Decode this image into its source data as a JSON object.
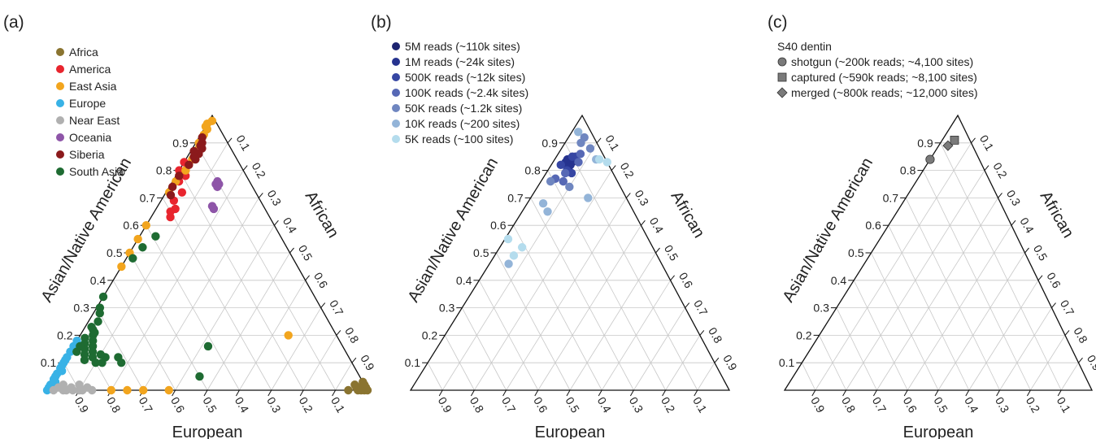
{
  "panel_labels": [
    "(a)",
    "(b)",
    "(c)"
  ],
  "colors": {
    "Africa": "#8a7430",
    "America": "#e8252e",
    "East Asia": "#f2a51e",
    "Europe": "#38b2e6",
    "Near East": "#b0b0b0",
    "Oceania": "#8e55a8",
    "Siberia": "#8b1a1c",
    "South Asia": "#1e6b32",
    "5M": "#1d2470",
    "1M": "#26338f",
    "500K": "#3646a3",
    "100K": "#5668b5",
    "50K": "#6f86c0",
    "10K": "#93b4d8",
    "5K": "#b4dced",
    "sample": "#7a7a7a"
  },
  "chart_data": [
    {
      "type": "scatter",
      "subtype": "ternary",
      "panel": "(a)",
      "axes": {
        "left": "Asian/Native American",
        "right": "African",
        "bottom": "European"
      },
      "ticks": [
        "0.1",
        "0.2",
        "0.3",
        "0.4",
        "0.5",
        "0.6",
        "0.7",
        "0.8",
        "0.9"
      ],
      "legend_position": "top-left",
      "legend": [
        "Africa",
        "America",
        "East Asia",
        "Europe",
        "Near East",
        "Oceania",
        "Siberia",
        "South Asia"
      ],
      "series": [
        {
          "name": "Africa",
          "points": [
            [
              0.0,
              0.99
            ],
            [
              0.01,
              0.98
            ],
            [
              0.0,
              0.97
            ],
            [
              0.02,
              0.95
            ],
            [
              0.01,
              0.96
            ],
            [
              0.0,
              0.94
            ],
            [
              0.03,
              0.97
            ],
            [
              0.0,
              1.0
            ],
            [
              0.01,
              0.99
            ],
            [
              0.02,
              0.98
            ],
            [
              0.0,
              0.98
            ],
            [
              0.01,
              0.97
            ]
          ]
        },
        {
          "name": "America",
          "points": [
            [
              0.83,
              0.0
            ],
            [
              0.8,
              0.02
            ],
            [
              0.78,
              0.03
            ],
            [
              0.72,
              0.05
            ],
            [
              0.66,
              0.06
            ],
            [
              0.63,
              0.06
            ],
            [
              0.8,
              0.0
            ],
            [
              0.76,
              0.02
            ],
            [
              0.69,
              0.04
            ],
            [
              0.65,
              0.05
            ]
          ]
        },
        {
          "name": "East Asia",
          "points": [
            [
              0.98,
              0.01
            ],
            [
              0.97,
              0.0
            ],
            [
              0.95,
              0.01
            ],
            [
              0.93,
              0.01
            ],
            [
              0.88,
              0.02
            ],
            [
              0.84,
              0.02
            ],
            [
              0.8,
              0.02
            ],
            [
              0.76,
              0.01
            ],
            [
              0.72,
              0.01
            ],
            [
              0.6,
              0.0
            ],
            [
              0.55,
              0.0
            ],
            [
              0.5,
              0.0
            ],
            [
              0.45,
              0.0
            ],
            [
              0.0,
              0.2
            ],
            [
              0.0,
              0.25
            ],
            [
              0.0,
              0.3
            ],
            [
              0.0,
              0.38
            ],
            [
              0.2,
              0.65
            ],
            [
              0.96,
              0.0
            ],
            [
              0.9,
              0.01
            ]
          ]
        },
        {
          "name": "Europe",
          "points": [
            [
              0.0,
              0.0
            ],
            [
              0.02,
              0.0
            ],
            [
              0.04,
              0.0
            ],
            [
              0.06,
              0.0
            ],
            [
              0.08,
              0.0
            ],
            [
              0.1,
              0.0
            ],
            [
              0.12,
              0.0
            ],
            [
              0.14,
              0.0
            ],
            [
              0.16,
              0.0
            ],
            [
              0.18,
              0.0
            ],
            [
              0.03,
              0.01
            ],
            [
              0.07,
              0.01
            ],
            [
              0.01,
              0.0
            ],
            [
              0.05,
              0.0
            ],
            [
              0.09,
              0.0
            ],
            [
              0.11,
              0.0
            ]
          ]
        },
        {
          "name": "Near East",
          "points": [
            [
              0.0,
              0.02
            ],
            [
              0.0,
              0.05
            ],
            [
              0.0,
              0.08
            ],
            [
              0.0,
              0.1
            ],
            [
              0.01,
              0.12
            ],
            [
              0.02,
              0.04
            ],
            [
              0.01,
              0.07
            ],
            [
              0.0,
              0.14
            ],
            [
              0.02,
              0.09
            ],
            [
              0.0,
              0.06
            ],
            [
              0.01,
              0.03
            ],
            [
              0.0,
              0.11
            ]
          ]
        },
        {
          "name": "Oceania",
          "points": [
            [
              0.76,
              0.14
            ],
            [
              0.75,
              0.14
            ],
            [
              0.74,
              0.15
            ],
            [
              0.67,
              0.17
            ],
            [
              0.66,
              0.18
            ],
            [
              0.75,
              0.15
            ]
          ]
        },
        {
          "name": "Siberia",
          "points": [
            [
              0.92,
              0.01
            ],
            [
              0.9,
              0.02
            ],
            [
              0.88,
              0.03
            ],
            [
              0.86,
              0.03
            ],
            [
              0.84,
              0.03
            ],
            [
              0.82,
              0.02
            ],
            [
              0.78,
              0.01
            ],
            [
              0.74,
              0.01
            ],
            [
              0.71,
              0.02
            ],
            [
              0.89,
              0.02
            ],
            [
              0.87,
              0.01
            ],
            [
              0.85,
              0.02
            ]
          ]
        },
        {
          "name": "South Asia",
          "points": [
            [
              0.34,
              0.0
            ],
            [
              0.3,
              0.01
            ],
            [
              0.28,
              0.02
            ],
            [
              0.25,
              0.03
            ],
            [
              0.22,
              0.03
            ],
            [
              0.2,
              0.04
            ],
            [
              0.18,
              0.05
            ],
            [
              0.16,
              0.06
            ],
            [
              0.14,
              0.07
            ],
            [
              0.12,
              0.08
            ],
            [
              0.1,
              0.1
            ],
            [
              0.19,
              0.02
            ],
            [
              0.17,
              0.03
            ],
            [
              0.15,
              0.04
            ],
            [
              0.13,
              0.05
            ],
            [
              0.11,
              0.06
            ],
            [
              0.21,
              0.04
            ],
            [
              0.23,
              0.02
            ],
            [
              0.12,
              0.16
            ],
            [
              0.1,
              0.18
            ],
            [
              0.12,
              0.12
            ],
            [
              0.13,
              0.1
            ],
            [
              0.1,
              0.12
            ],
            [
              0.16,
              0.42
            ],
            [
              0.05,
              0.45
            ],
            [
              0.56,
              0.05
            ],
            [
              0.52,
              0.03
            ],
            [
              0.48,
              0.02
            ],
            [
              0.16,
              0.02
            ],
            [
              0.14,
              0.02
            ]
          ]
        }
      ]
    },
    {
      "type": "scatter",
      "subtype": "ternary",
      "panel": "(b)",
      "axes": {
        "left": "Asian/Native American",
        "right": "African",
        "bottom": "European"
      },
      "ticks": [
        "0.1",
        "0.2",
        "0.3",
        "0.4",
        "0.5",
        "0.6",
        "0.7",
        "0.8",
        "0.9"
      ],
      "legend_position": "top-left",
      "legend": [
        "5M reads (~110k sites)",
        "1M reads (~24k sites)",
        "500K reads (~12k sites)",
        "100K reads (~2.4k sites)",
        "50K reads (~1.2k sites)",
        "10K reads (~200 sites)",
        "5K reads (~100 sites)"
      ],
      "series": [
        {
          "name": "5M reads (~110k sites)",
          "points": [
            [
              0.83,
              0.05
            ],
            [
              0.82,
              0.05
            ],
            [
              0.84,
              0.05
            ],
            [
              0.83,
              0.06
            ],
            [
              0.82,
              0.06
            ]
          ]
        },
        {
          "name": "1M reads (~24k sites)",
          "points": [
            [
              0.84,
              0.04
            ],
            [
              0.82,
              0.06
            ],
            [
              0.83,
              0.04
            ],
            [
              0.81,
              0.06
            ],
            [
              0.84,
              0.06
            ]
          ]
        },
        {
          "name": "500K reads (~12k sites)",
          "points": [
            [
              0.85,
              0.05
            ],
            [
              0.8,
              0.06
            ],
            [
              0.82,
              0.03
            ],
            [
              0.85,
              0.06
            ],
            [
              0.79,
              0.08
            ]
          ]
        },
        {
          "name": "100K reads (~2.4k sites)",
          "points": [
            [
              0.86,
              0.07
            ],
            [
              0.79,
              0.06
            ],
            [
              0.76,
              0.07
            ],
            [
              0.77,
              0.04
            ],
            [
              0.83,
              0.08
            ]
          ]
        },
        {
          "name": "50K reads (~1.2k sites)",
          "points": [
            [
              0.88,
              0.09
            ],
            [
              0.9,
              0.05
            ],
            [
              0.74,
              0.1
            ],
            [
              0.76,
              0.03
            ],
            [
              0.92,
              0.05
            ]
          ]
        },
        {
          "name": "10K reads (~200 sites)",
          "points": [
            [
              0.94,
              0.02
            ],
            [
              0.68,
              0.05
            ],
            [
              0.65,
              0.08
            ],
            [
              0.46,
              0.06
            ],
            [
              0.84,
              0.13
            ],
            [
              0.7,
              0.18
            ]
          ]
        },
        {
          "name": "5K reads (~100 sites)",
          "points": [
            [
              0.52,
              0.07
            ],
            [
              0.55,
              0.01
            ],
            [
              0.84,
              0.14
            ],
            [
              0.83,
              0.17
            ],
            [
              0.49,
              0.06
            ]
          ]
        }
      ]
    },
    {
      "type": "scatter",
      "subtype": "ternary",
      "panel": "(c)",
      "title": "S40 dentin",
      "axes": {
        "left": "Asian/Native American",
        "right": "African",
        "bottom": "European"
      },
      "ticks": [
        "0.1",
        "0.2",
        "0.3",
        "0.4",
        "0.5",
        "0.6",
        "0.7",
        "0.8",
        "0.9"
      ],
      "legend_position": "top-left",
      "legend": [
        "shotgun (~200k reads; ~4,100 sites)",
        "captured (~590k reads; ~8,100 sites)",
        "merged (~800k reads; ~12,000 sites)"
      ],
      "series": [
        {
          "name": "shotgun (~200k reads; ~4,100 sites)",
          "marker": "circle",
          "points": [
            [
              0.84,
              0.0
            ]
          ]
        },
        {
          "name": "captured (~590k reads; ~8,100 sites)",
          "marker": "square",
          "points": [
            [
              0.91,
              0.04
            ]
          ]
        },
        {
          "name": "merged (~800k reads; ~12,000 sites)",
          "marker": "diamond",
          "points": [
            [
              0.89,
              0.03
            ]
          ]
        }
      ]
    }
  ]
}
